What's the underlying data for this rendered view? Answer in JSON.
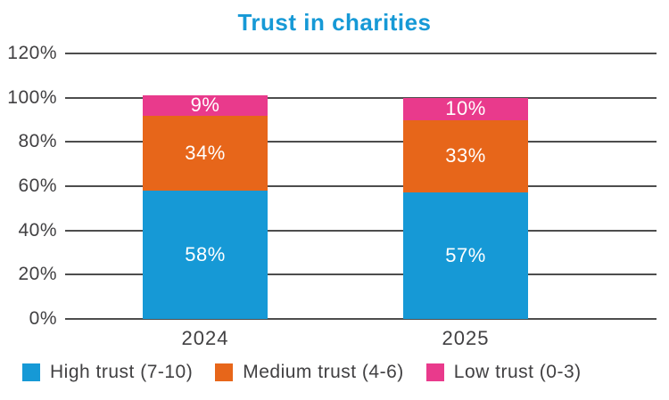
{
  "style": {
    "background": "#ffffff",
    "title_color": "#1699D6",
    "axis_text_color": "#414042",
    "gridline_color": "#4D4D4D",
    "bar_label_color": "#FFFFFF"
  },
  "chart_data": {
    "type": "bar",
    "stacked": true,
    "title": "Trust in charities",
    "xlabel": "",
    "ylabel": "",
    "categories": [
      "2024",
      "2025"
    ],
    "series": [
      {
        "name": "High trust (7-10)",
        "color": "#1699D6",
        "values": [
          58,
          57
        ],
        "data_labels": [
          "58%",
          "57%"
        ]
      },
      {
        "name": "Medium trust (4-6)",
        "color": "#E7661A",
        "values": [
          34,
          33
        ],
        "data_labels": [
          "34%",
          "33%"
        ]
      },
      {
        "name": "Low trust (0-3)",
        "color": "#E93A8C",
        "values": [
          9,
          10
        ],
        "data_labels": [
          "9%",
          "10%"
        ]
      }
    ],
    "ylim": [
      0,
      120
    ],
    "ytick_interval": 20,
    "ytick_labels": [
      "0%",
      "20%",
      "40%",
      "60%",
      "80%",
      "100%",
      "120%"
    ],
    "grid": true,
    "legend_position": "bottom",
    "legend_entries": [
      "High trust (7-10)",
      "Medium trust (4-6)",
      "Low trust (0-3)"
    ]
  }
}
